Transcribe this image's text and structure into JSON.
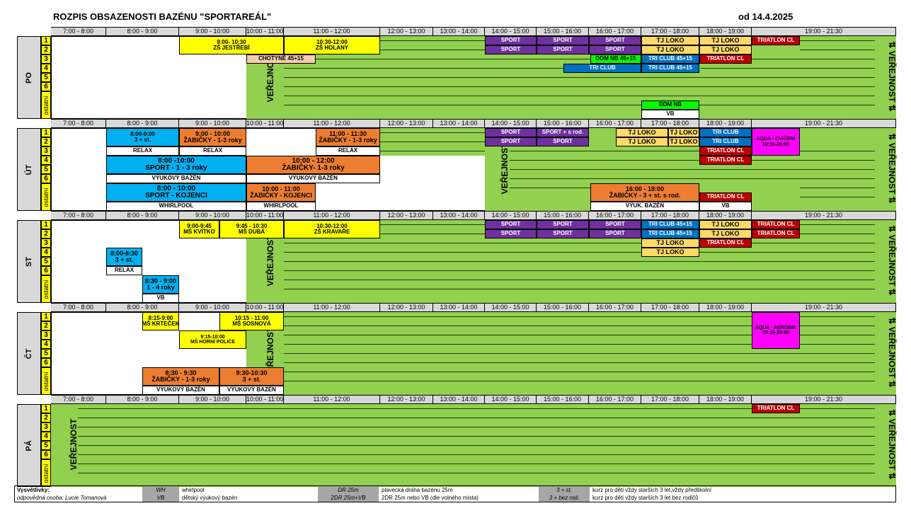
{
  "title": "ROZPIS OBSAZENOSTI BAZÉNU \"SPORTAREÁL\"",
  "date": "od 14.4.2025",
  "time_slots": [
    "7:00 - 8:00",
    "8:00 - 9:00",
    "9:00 - 10:00",
    "10:00 - 11:00",
    "11:00 - 12:00",
    "12:00 - 13:00",
    "13:00 - 14:00",
    "14:00 - 15:00",
    "15:00 - 16:00",
    "16:00 - 17:00",
    "17:00 - 18:00",
    "18:00 - 19:00",
    "19:00 - 21:30"
  ],
  "lanes": [
    "1",
    "2",
    "3",
    "4",
    "5",
    "6"
  ],
  "ostatni": "ostatní",
  "verejnost": "VEŘEJNOST",
  "verejnost_right": "⇅ VEŘEJNOST ⇅",
  "days": [
    {
      "name": "PO",
      "blocks": [
        [
          "9:00- 10:30",
          "ZŠ JESTŘEBÍ",
          "ZŠ HOLANY",
          "10:30-12:00"
        ],
        [
          "SPORT",
          "SPORT",
          "SPORT",
          "TJ LOKO",
          "TJ LOKO",
          "TRIATLON CL"
        ],
        [
          "SPORT",
          "SPORT",
          "SPORT",
          "TJ LOKO",
          "TJ LOKO"
        ],
        [
          "CHOTYNĚ 45+15",
          "DDM NB 45+15",
          "TRI CLUB 45+15",
          "TRIATLON CL"
        ],
        [
          "TRI CLUB",
          "TRI CLUB 45+15"
        ],
        [
          "DDM NB",
          "VB"
        ]
      ]
    },
    {
      "name": "ÚT",
      "blocks": [
        [
          "8:00-9:00",
          "3 + st.",
          "9:00 - 10:00",
          "ŽABIČKY - 1-3 roky",
          "11:00 - 11:30",
          "ŽABIČKY - 1-3 roky"
        ],
        [
          "RELAX",
          "RELAX",
          "RELAX"
        ],
        [
          "8:00 -10:00",
          "SPORT - 1 - 3 roky",
          "10:00 - 12:00",
          "ŽABIČKY- 1-3 roky"
        ],
        [
          "VÝUKOVÝ BAZÉN",
          "VÝUKOVÝ BAZÉN"
        ],
        [
          "8:00 - 10:00",
          "SPORT - KOJENCI",
          "10:00 - 11:00",
          "ŽABIČKY - KOJENCI",
          "WHIRLPOOL",
          "WHIRLPOOL"
        ],
        [
          "SPORT",
          "SPORT + s rod.",
          "TJ LOKO",
          "TJ LOKO",
          "TRI CLUB",
          "AQUA - CVIČENÍ",
          "19:15-20:00"
        ],
        [
          "SPORT",
          "SPORT",
          "TJ LOKO",
          "TJ LOKO",
          "TRI CLUB"
        ],
        [
          "TRIATLON CL",
          "TRIATLON CL"
        ],
        [
          "16:00 - 18:00",
          "ŽABIČKY - 3 + st. s rod.",
          "VÝUK. BAZÉN",
          "TRIATLON CL",
          "VB"
        ]
      ]
    },
    {
      "name": "ST",
      "blocks": [
        [
          "9:00-9:45",
          "MŠ KVÍTKO",
          "9:45 - 10:30",
          "MŠ DUBÁ",
          "10:30-12:00",
          "ZŠ KRAVAŘE"
        ],
        [
          "SPORT",
          "SPORT",
          "SPORT",
          "TRI CLUB 45+15",
          "TJ LOKO",
          "TRIATLON CL"
        ],
        [
          "SPORT",
          "SPORT",
          "SPORT",
          "TRI CLUB 45+15",
          "TJ LOKO",
          "TRIATLON CL"
        ],
        [
          "TJ LOKO",
          "TRIATLON CL",
          "TJ LOKO"
        ],
        [
          "8:00-8:30",
          "3 + st.",
          "RELAX",
          "8:30 - 9:00",
          "1 - 4 roky",
          "VB"
        ]
      ]
    },
    {
      "name": "ČT",
      "blocks": [
        [
          "8:15-9:00",
          "MŠ KRTEČEK",
          "10:15 - 11:00",
          "MŠ SOSNOVÁ",
          "9:15-10:00",
          "MŠ HORNÍ POLICE"
        ],
        [
          "8:30 - 9:30",
          "ŽABIČKY - 1-3 roky",
          "9:30-10:30",
          "3 + st.",
          "VÝUKOVÝ BAZÉN",
          "VÝUKOVÝ BAZÉN"
        ],
        [
          "AQUA - AEROBIK",
          "19:15-20:00"
        ]
      ]
    },
    {
      "name": "PÁ",
      "blocks": [
        [
          "TRIATLON CL"
        ]
      ]
    }
  ],
  "legend": {
    "title": "Vysvětlivky:",
    "person": "odpovědná osoba: Lucie Tomanová",
    "wh": "WH",
    "wh_desc": "whirlpool",
    "vb": "VB",
    "vb_desc": "dětský výukový bazén",
    "dr": "DR 25m",
    "dr_desc": "plavecká dráha bazénu 25m",
    "dr2": "2DR 25m+VB",
    "dr2_desc": "2DR 25m nebo VB (dle volného místa)",
    "st": "3 + st.",
    "st_desc": "kurz pro děti vždy starších 3 let,vždy předškolní",
    "bez": "3 + bez rod.",
    "bez_desc": "kurz pro děti vždy starších 3 let bez rodičů"
  },
  "colors": {
    "green": "#92d050",
    "yellow": "#ffff00",
    "purple": "#7030a0",
    "orange": "#ed7d31",
    "blue": "#00b0f0",
    "red": "#c00000",
    "magenta": "#ff00ff"
  }
}
